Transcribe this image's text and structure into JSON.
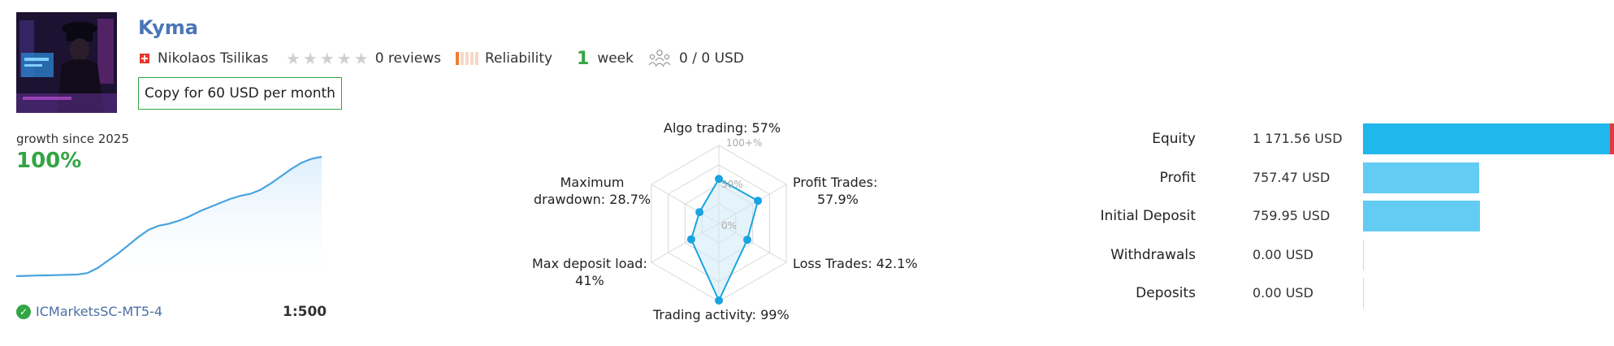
{
  "header": {
    "title": "Kyma",
    "author": "Nikolaos Tsilikas",
    "reviews": "0 reviews",
    "reliability_label": "Reliability",
    "age_number": "1",
    "age_unit": "week",
    "subscribers": "0 / 0 USD",
    "copy_button": "Copy for 60 USD per month"
  },
  "growth": {
    "label": "growth since 2025",
    "value": "100%",
    "server": "ICMarketsSC-MT5-4",
    "leverage": "1:500",
    "sparkline": [
      0,
      0.3,
      0.6,
      0.8,
      1.0,
      1.3,
      1.6,
      3,
      8,
      15,
      22,
      30,
      38,
      45,
      49,
      51,
      54,
      58,
      63,
      67,
      71,
      75,
      78,
      80,
      84,
      90,
      97,
      104,
      110,
      114,
      116
    ]
  },
  "radar": {
    "labels": {
      "algo": "Algo trading: 57%",
      "profit_line1": "Profit Trades:",
      "profit_line2": "57.9%",
      "loss": "Loss Trades: 42.1%",
      "activity": "Trading activity: 99%",
      "deposit_line1": "Max deposit load:",
      "deposit_line2": "41%",
      "drawdown_line1": "Maximum",
      "drawdown_line2": "drawdown: 28.7%"
    },
    "ticks": [
      "100+%",
      "50%",
      "0%"
    ],
    "values": [
      57,
      57.9,
      42.1,
      99,
      41,
      28.7
    ]
  },
  "stats": {
    "colors": {
      "primary": "#20b7ed",
      "light": "#63ccf3",
      "loss": "#e03c3c"
    },
    "rows": [
      {
        "label": "Equity",
        "value": "1 171.56 USD",
        "fill": 0.985,
        "loss_fill": 0.015
      },
      {
        "label": "Profit",
        "value": "757.47 USD",
        "fill": 0.464,
        "loss_fill": 0
      },
      {
        "label": "Initial Deposit",
        "value": "759.95 USD",
        "fill": 0.467,
        "loss_fill": 0
      },
      {
        "label": "Withdrawals",
        "value": "0.00 USD",
        "fill": 0,
        "loss_fill": 0
      },
      {
        "label": "Deposits",
        "value": "0.00 USD",
        "fill": 0,
        "loss_fill": 0
      }
    ]
  }
}
